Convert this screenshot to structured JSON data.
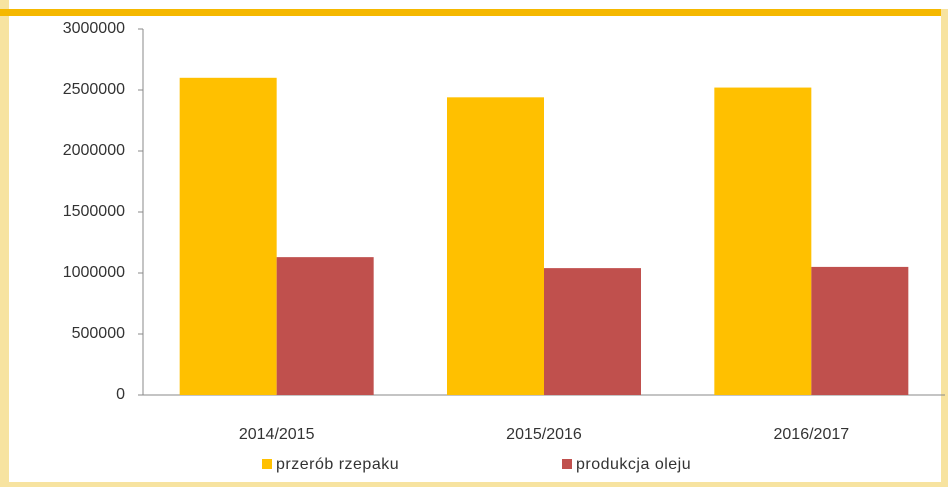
{
  "chart_data": {
    "type": "bar",
    "categories": [
      "2014/2015",
      "2015/2016",
      "2016/2017"
    ],
    "series": [
      {
        "name": "przerób rzepaku",
        "color": "#ffc000",
        "values": [
          2600000,
          2440000,
          2520000
        ]
      },
      {
        "name": "produkcja oleju",
        "color": "#c0504d",
        "values": [
          1130000,
          1040000,
          1050000
        ]
      }
    ],
    "ylim": [
      0,
      3000000
    ],
    "yticks": [
      0,
      500000,
      1000000,
      1500000,
      2000000,
      2500000,
      3000000
    ],
    "grid": false,
    "legend": "bottom"
  }
}
